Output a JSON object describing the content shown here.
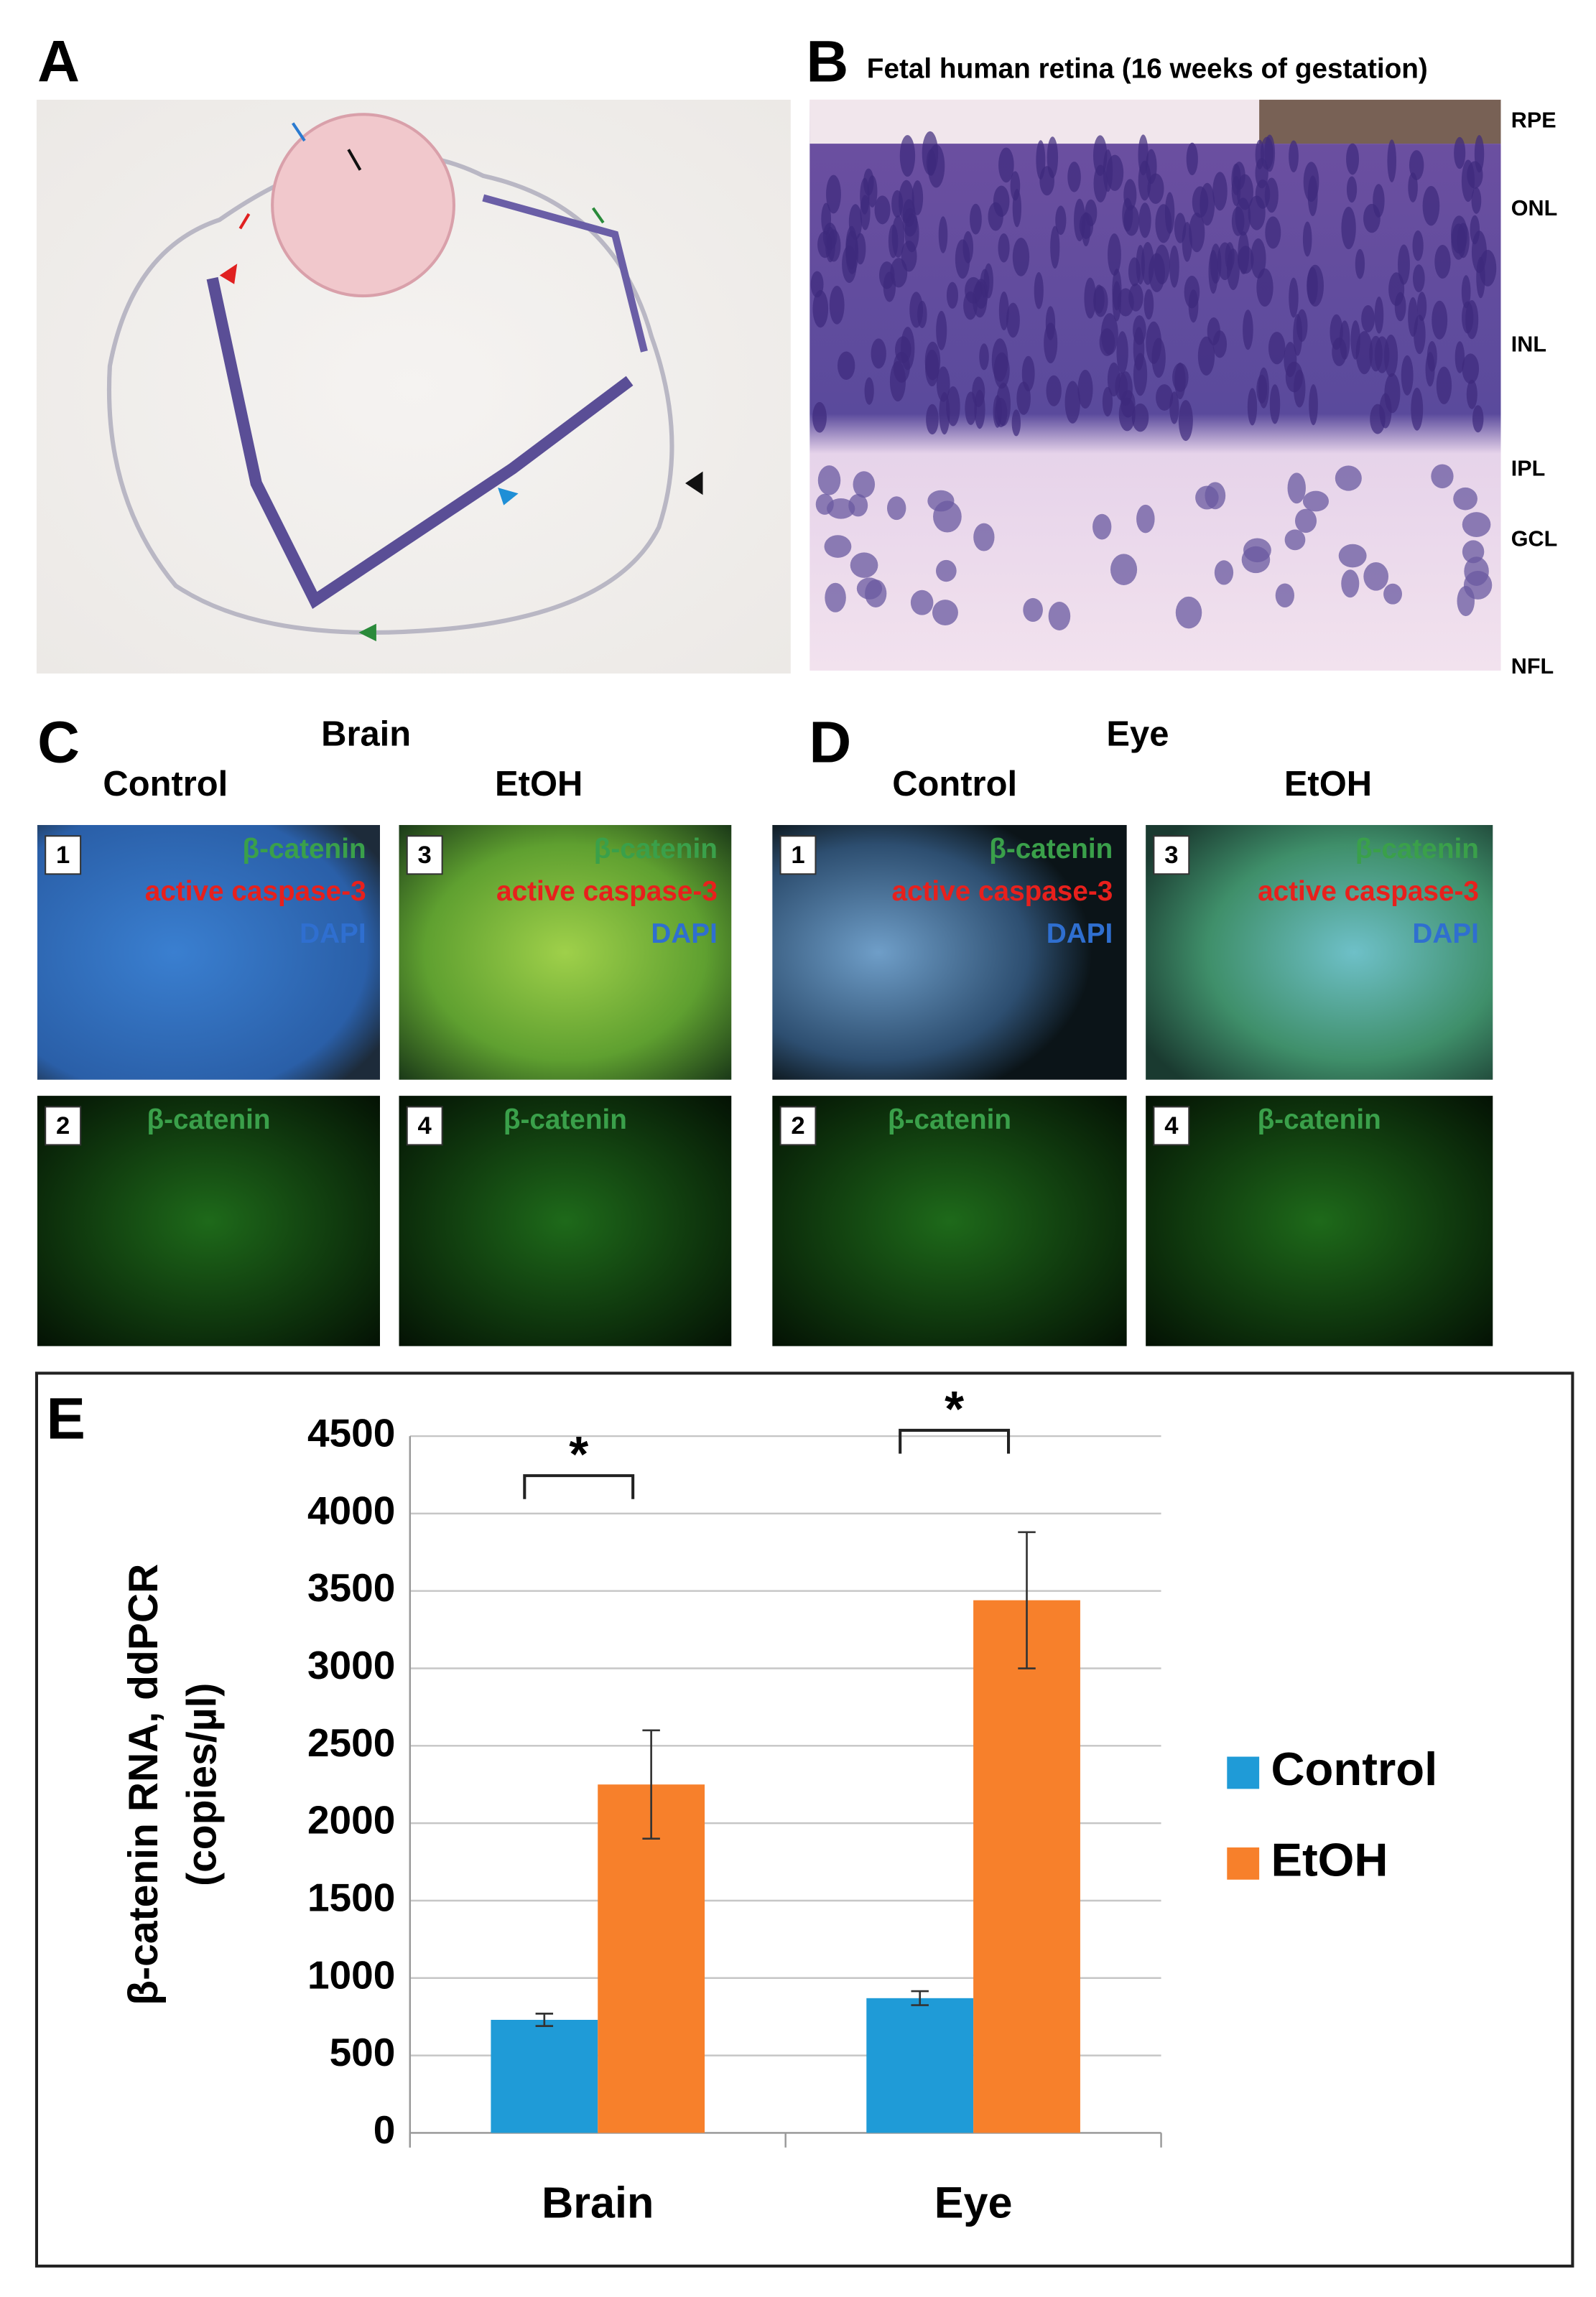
{
  "panels": {
    "A": {
      "letter": "A"
    },
    "B": {
      "letter": "B",
      "title": "Fetal human retina (16 weeks of gestation)",
      "layers": [
        "RPE",
        "ONL",
        "INL",
        "IPL",
        "GCL",
        "NFL"
      ]
    },
    "C": {
      "letter": "C",
      "title": "Brain",
      "columns": [
        "Control",
        "EtOH"
      ],
      "tiles": [
        {
          "number": "1",
          "labels": [
            "β-catenin",
            "active caspase-3",
            "DAPI"
          ]
        },
        {
          "number": "2",
          "labels": [
            "β-catenin"
          ]
        },
        {
          "number": "3",
          "labels": [
            "β-catenin",
            "active caspase-3",
            "DAPI"
          ]
        },
        {
          "number": "4",
          "labels": [
            "β-catenin"
          ]
        }
      ]
    },
    "D": {
      "letter": "D",
      "title": "Eye",
      "columns": [
        "Control",
        "EtOH"
      ],
      "tiles": [
        {
          "number": "1",
          "labels": [
            "β-catenin",
            "active caspase-3",
            "DAPI"
          ]
        },
        {
          "number": "2",
          "labels": [
            "β-catenin"
          ]
        },
        {
          "number": "3",
          "labels": [
            "β-catenin",
            "active caspase-3",
            "DAPI"
          ]
        },
        {
          "number": "4",
          "labels": [
            "β-catenin"
          ]
        }
      ]
    },
    "E": {
      "letter": "E"
    }
  },
  "chart_data": {
    "type": "bar",
    "y_label": [
      "β-catenin RNA, ddPCR",
      "(copies/µl)"
    ],
    "categories": [
      "Brain",
      "Eye"
    ],
    "series": [
      {
        "name": "Control",
        "color": "#1f9bd7",
        "values": [
          730,
          870
        ],
        "errors": [
          40,
          45
        ]
      },
      {
        "name": "EtOH",
        "color": "#f7802b",
        "values": [
          2250,
          3440
        ],
        "errors": [
          350,
          440
        ]
      }
    ],
    "ylim": [
      0,
      4500
    ],
    "yticks": [
      0,
      500,
      1000,
      1500,
      2000,
      2500,
      3000,
      3500,
      4000,
      4500
    ],
    "grid": true,
    "legend": "right",
    "significance": [
      "*",
      "*"
    ]
  }
}
